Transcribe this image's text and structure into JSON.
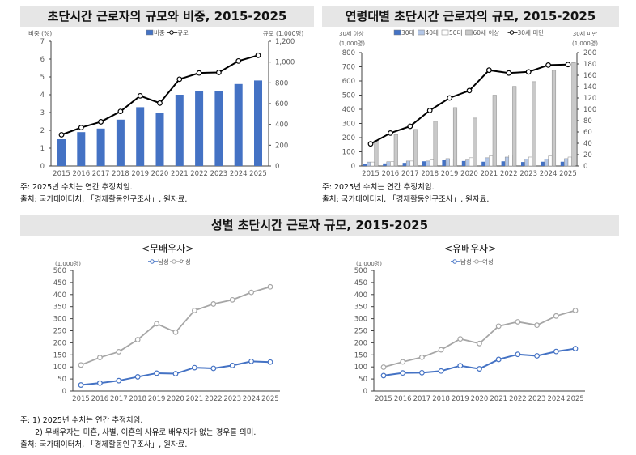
{
  "titles": {
    "top_left": "초단시간 근로자의 규모와 비중, 2015-2025",
    "top_right": "연령대별 초단시간 근로자의 규모, 2015-2025",
    "bottom": "성별 초단시간 근로자 규모, 2015-2025",
    "bottom_left_sub": "<무배우자>",
    "bottom_right_sub": "<유배우자>"
  },
  "notes": {
    "top_left": [
      "주: 2025년 수치는 연간 추정치임.",
      "출처: 국가데이터처, 「경제활동인구조사」, 원자료."
    ],
    "top_right": [
      "주: 2025년 수치는 연간 추정치임.",
      "출처: 국가데이터처, 「경제활동인구조사」, 원자료."
    ],
    "bottom": [
      "주: 1) 2025년 수치는 연간 추정치임.",
      "      2) 무배우자는 미혼, 사별, 이혼의 사유로 배우자가 없는 경우를 의미.",
      "출처: 국가데이터처, 「경제활동인구조사」, 원자료."
    ]
  },
  "chart_data": [
    {
      "type": "bar+line",
      "categories": [
        "2015",
        "2016",
        "2017",
        "2018",
        "2019",
        "2020",
        "2021",
        "2022",
        "2023",
        "2024",
        "2025"
      ],
      "ylabel_left": "비중 (%)",
      "ylabel_right": "규모 (1,000명)",
      "ylim_left": [
        0,
        7
      ],
      "yticks_left": [
        "0",
        "1",
        "2",
        "3",
        "4",
        "5",
        "6",
        "7"
      ],
      "ylim_right": [
        0,
        1200
      ],
      "yticks_right": [
        "0",
        "200",
        "400",
        "600",
        "800",
        "1,000",
        "1,200"
      ],
      "legend": "top",
      "series": [
        {
          "name": "비중",
          "type": "bar",
          "axis": "left",
          "color": "#4472c4",
          "values": [
            1.5,
            1.9,
            2.1,
            2.6,
            3.3,
            3.0,
            4.0,
            4.2,
            4.2,
            4.6,
            4.8
          ]
        },
        {
          "name": "규모",
          "type": "line",
          "axis": "right",
          "color": "#000000",
          "values": [
            300,
            370,
            425,
            525,
            675,
            605,
            835,
            895,
            900,
            1010,
            1065
          ]
        }
      ]
    },
    {
      "type": "bar+line",
      "categories": [
        "2015",
        "2016",
        "2017",
        "2018",
        "2019",
        "2020",
        "2021",
        "2022",
        "2023",
        "2024",
        "2025"
      ],
      "ylabel_left": [
        "30세 이상",
        "(1,000명)"
      ],
      "ylabel_right": [
        "30세 미만",
        "(1,000명)"
      ],
      "ylim_left": [
        0,
        800
      ],
      "yticks_left": [
        "0",
        "100",
        "200",
        "300",
        "400",
        "500",
        "600",
        "700",
        "800"
      ],
      "ylim_right": [
        0,
        200
      ],
      "yticks_right": [
        "0",
        "20",
        "40",
        "60",
        "80",
        "100",
        "120",
        "140",
        "160",
        "180",
        "200"
      ],
      "legend": "top",
      "series": [
        {
          "name": "30대",
          "type": "bar",
          "axis": "left",
          "color": "#4472c4",
          "values": [
            12,
            18,
            22,
            33,
            40,
            35,
            30,
            33,
            28,
            30,
            30
          ]
        },
        {
          "name": "40대",
          "type": "bar",
          "axis": "left",
          "color": "#b4c7e7",
          "values": [
            28,
            30,
            35,
            35,
            52,
            42,
            58,
            63,
            50,
            48,
            52
          ]
        },
        {
          "name": "50대",
          "type": "bar",
          "axis": "left",
          "color": "#ffffff",
          "values": [
            28,
            30,
            35,
            42,
            48,
            58,
            70,
            77,
            63,
            70,
            63
          ]
        },
        {
          "name": "60세 이상",
          "type": "bar",
          "axis": "left",
          "color": "#c9c9c9",
          "values": [
            180,
            222,
            258,
            315,
            412,
            338,
            500,
            562,
            595,
            675,
            730
          ]
        },
        {
          "name": "30세 미만",
          "type": "line",
          "axis": "right",
          "color": "#000000",
          "values": [
            39,
            58,
            70,
            98,
            120,
            133,
            169,
            164,
            166,
            178,
            179
          ]
        }
      ]
    },
    {
      "type": "line",
      "categories": [
        "2015",
        "2016",
        "2017",
        "2018",
        "2019",
        "2020",
        "2021",
        "2022",
        "2023",
        "2024",
        "2025"
      ],
      "ylabel": "(1,000명)",
      "ylim": [
        0,
        500
      ],
      "yticks": [
        "0",
        "50",
        "100",
        "150",
        "200",
        "250",
        "300",
        "350",
        "400",
        "450",
        "500"
      ],
      "legend": "top",
      "series": [
        {
          "name": "남성",
          "color": "#4472c4",
          "values": [
            25,
            33,
            43,
            59,
            74,
            72,
            97,
            94,
            106,
            123,
            120
          ]
        },
        {
          "name": "여성",
          "color": "#a6a6a6",
          "values": [
            108,
            139,
            163,
            213,
            279,
            244,
            334,
            361,
            378,
            409,
            432
          ]
        }
      ]
    },
    {
      "type": "line",
      "categories": [
        "2015",
        "2016",
        "2017",
        "2018",
        "2019",
        "2020",
        "2021",
        "2022",
        "2023",
        "2024",
        "2025"
      ],
      "ylabel": "(1,000명)",
      "ylim": [
        0,
        500
      ],
      "yticks": [
        "0",
        "50",
        "100",
        "150",
        "200",
        "250",
        "300",
        "350",
        "400",
        "450",
        "500"
      ],
      "legend": "top",
      "series": [
        {
          "name": "남성",
          "color": "#4472c4",
          "values": [
            64,
            75,
            76,
            83,
            105,
            92,
            131,
            152,
            146,
            164,
            176
          ]
        },
        {
          "name": "여성",
          "color": "#a6a6a6",
          "values": [
            99,
            121,
            140,
            171,
            216,
            197,
            269,
            287,
            273,
            311,
            334
          ]
        }
      ]
    }
  ]
}
